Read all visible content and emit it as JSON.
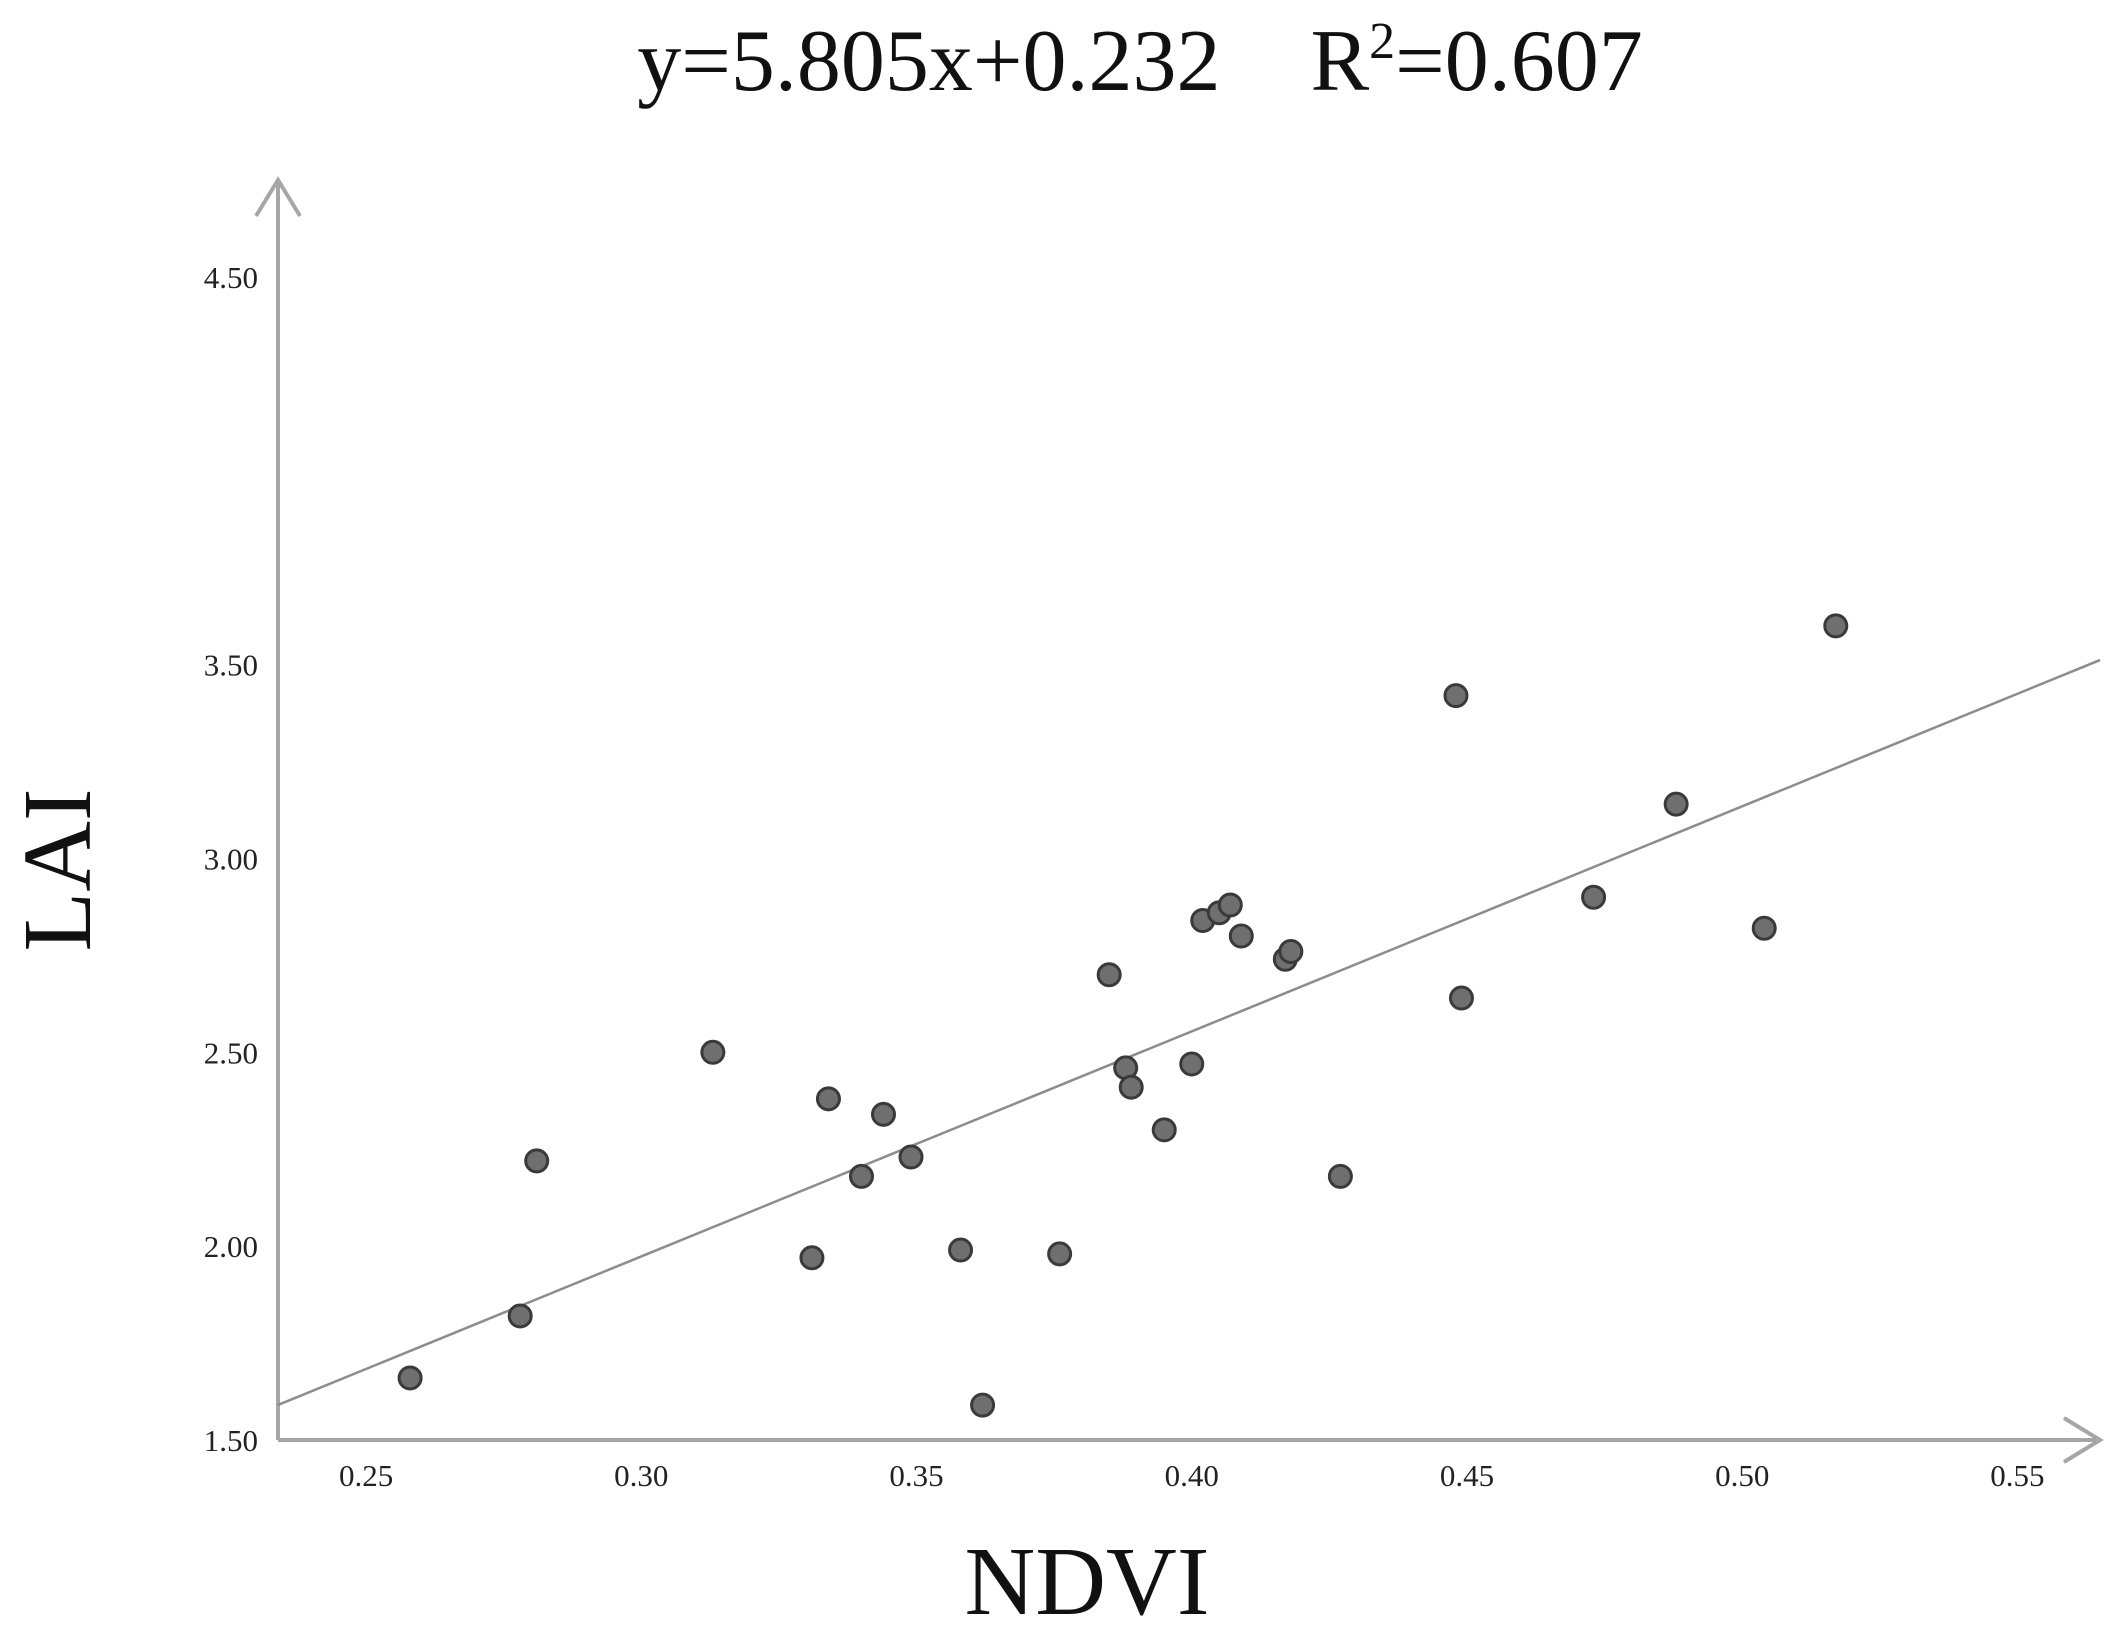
{
  "chart_data": {
    "type": "scatter",
    "title": {
      "equation": "y=5.805x+0.232",
      "r2_prefix": "R",
      "r2_exponent": "2",
      "r2_suffix": "=0.607"
    },
    "xlabel": "NDVI",
    "ylabel": "LAI",
    "x_tick_labels": [
      "0.25",
      "0.30",
      "0.35",
      "0.40",
      "0.45",
      "0.50",
      "0.55"
    ],
    "y_tick_labels": [
      "1.50",
      "2.00",
      "2.50",
      "3.00",
      "3.50",
      "4.50"
    ],
    "xlim": [
      0.234,
      0.565
    ],
    "ylim": [
      1.5,
      4.75
    ],
    "fit_line": {
      "slope": 5.805,
      "intercept": 0.232
    },
    "points": [
      {
        "x": 0.258,
        "y": 1.66
      },
      {
        "x": 0.278,
        "y": 1.82
      },
      {
        "x": 0.281,
        "y": 2.22
      },
      {
        "x": 0.313,
        "y": 2.5
      },
      {
        "x": 0.331,
        "y": 1.97
      },
      {
        "x": 0.334,
        "y": 2.38
      },
      {
        "x": 0.34,
        "y": 2.18
      },
      {
        "x": 0.344,
        "y": 2.34
      },
      {
        "x": 0.349,
        "y": 2.23
      },
      {
        "x": 0.358,
        "y": 1.99
      },
      {
        "x": 0.362,
        "y": 1.59
      },
      {
        "x": 0.376,
        "y": 1.98
      },
      {
        "x": 0.385,
        "y": 2.7
      },
      {
        "x": 0.388,
        "y": 2.46
      },
      {
        "x": 0.389,
        "y": 2.41
      },
      {
        "x": 0.395,
        "y": 2.3
      },
      {
        "x": 0.4,
        "y": 2.47
      },
      {
        "x": 0.402,
        "y": 2.84
      },
      {
        "x": 0.405,
        "y": 2.86
      },
      {
        "x": 0.407,
        "y": 2.88
      },
      {
        "x": 0.409,
        "y": 2.8
      },
      {
        "x": 0.417,
        "y": 2.74
      },
      {
        "x": 0.418,
        "y": 2.76
      },
      {
        "x": 0.427,
        "y": 2.18
      },
      {
        "x": 0.448,
        "y": 3.42
      },
      {
        "x": 0.449,
        "y": 2.64
      },
      {
        "x": 0.473,
        "y": 2.9
      },
      {
        "x": 0.488,
        "y": 3.14
      },
      {
        "x": 0.504,
        "y": 2.82
      },
      {
        "x": 0.517,
        "y": 3.6
      }
    ],
    "grid": false,
    "colors": {
      "axis": "#a6a6a6",
      "point_fill": "#6f6f6f",
      "point_stroke": "#3a3a3a",
      "fit_line": "#8c8c8c"
    }
  }
}
